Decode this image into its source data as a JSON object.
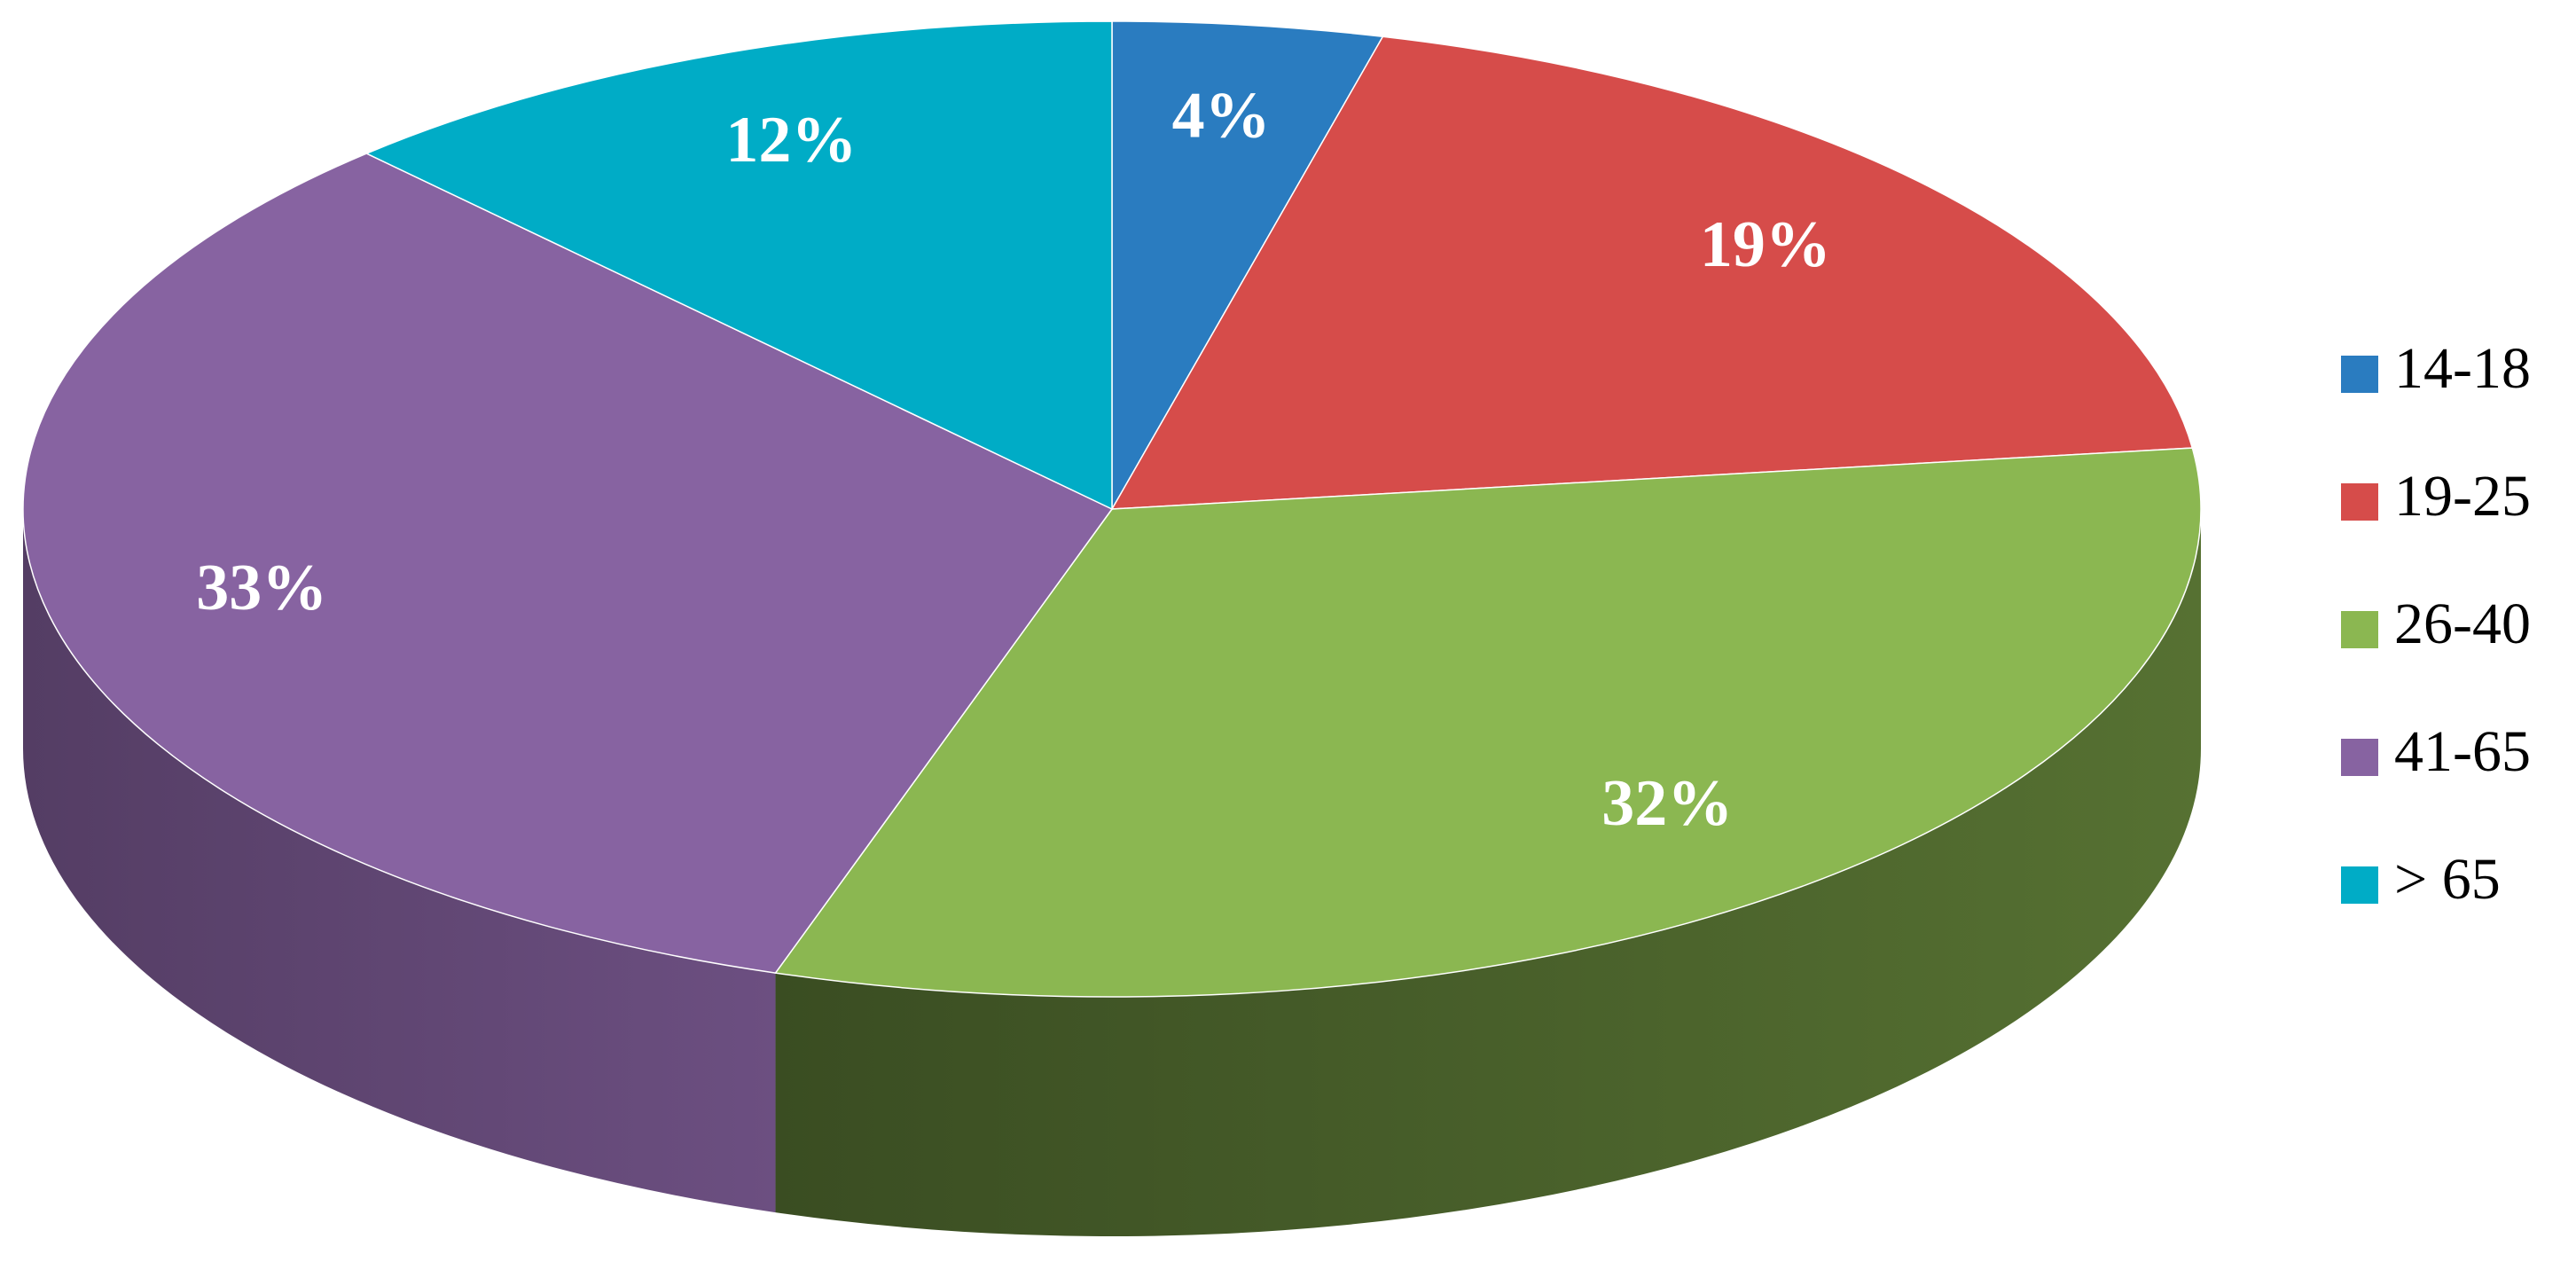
{
  "chart_data": {
    "type": "pie",
    "categories": [
      "14-18",
      "19-25",
      "26-40",
      "41-65",
      "> 65"
    ],
    "values": [
      4,
      19,
      32,
      33,
      12
    ],
    "value_labels": [
      "4%",
      "19%",
      "32%",
      "33%",
      "12%"
    ],
    "colors": [
      "#2a7cc0",
      "#d64c4a",
      "#8bb751",
      "#8763a1",
      "#00acc6"
    ],
    "legend": "right"
  }
}
